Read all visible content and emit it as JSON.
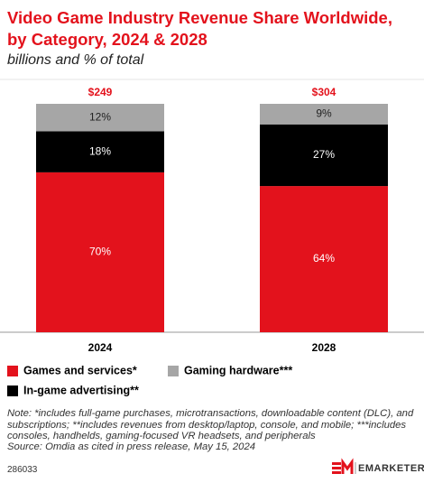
{
  "chart_data": {
    "type": "stacked_bar_100",
    "title": "Video Game Industry Revenue Share Worldwide, by Category, 2024 & 2028",
    "subtitle": "billions and % of total",
    "categories": [
      "2024",
      "2028"
    ],
    "totals": {
      "values": [
        249,
        304
      ],
      "value_labels": [
        "$249",
        "$304"
      ],
      "color": "#e3121c"
    },
    "series": [
      {
        "name": "Games and services*",
        "color": "#e3121c",
        "values": [
          70,
          64
        ],
        "value_labels": [
          "70%",
          "64%"
        ]
      },
      {
        "name": "In-game advertising**",
        "color": "#000000",
        "values": [
          18,
          27
        ],
        "value_labels": [
          "18%",
          "27%"
        ]
      },
      {
        "name": "Gaming hardware***",
        "color": "#a6a6a6",
        "values": [
          12,
          9
        ],
        "value_labels": [
          "12%",
          "9%"
        ]
      }
    ],
    "note": "Note: *includes full-game purchases, microtransactions, downloadable content (DLC), and subscriptions; **includes revenues from desktop/laptop, console, and mobile; ***includes consoles, handhelds, gaming-focused VR headsets, and peripherals",
    "source": "Source: Omdia as cited in press release, May 15, 2024",
    "chart_id": "286033",
    "brand": "EMARKETER"
  }
}
